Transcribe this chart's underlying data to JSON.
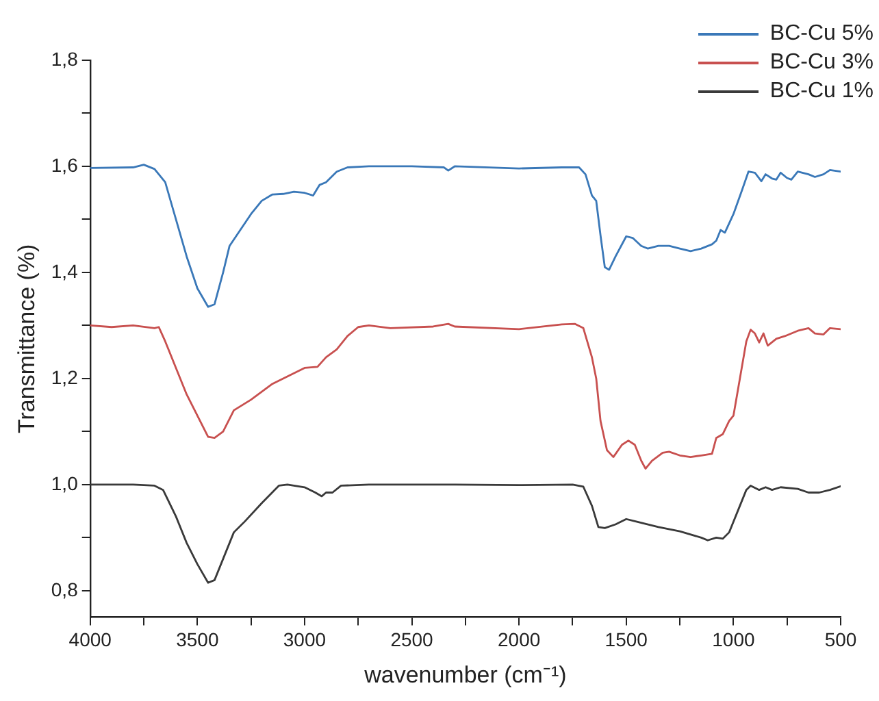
{
  "chart_data": {
    "type": "line",
    "xlabel": "wavenumber (cm⁻¹)",
    "ylabel": "Transmittance (%)",
    "xlim": [
      4000,
      500
    ],
    "ylim": [
      0.75,
      1.8
    ],
    "xticks": [
      4000,
      {
        "value": 3750,
        "label": null
      },
      3500,
      {
        "value": 3250,
        "label": null
      },
      3000,
      {
        "value": 2750,
        "label": null
      },
      2500,
      {
        "value": 2250,
        "label": null
      },
      2000,
      {
        "value": 1750,
        "label": null
      },
      1500,
      {
        "value": 1250,
        "label": null
      },
      1000,
      {
        "value": 750,
        "label": null
      },
      500
    ],
    "yticks": [
      {
        "value": 0.8,
        "label": "0,8"
      },
      {
        "value": 0.9,
        "label": null
      },
      {
        "value": 1.0,
        "label": "1,0"
      },
      {
        "value": 1.1,
        "label": null
      },
      {
        "value": 1.2,
        "label": "1,2"
      },
      {
        "value": 1.3,
        "label": null
      },
      {
        "value": 1.4,
        "label": "1,4"
      },
      {
        "value": 1.5,
        "label": null
      },
      {
        "value": 1.6,
        "label": "1,6"
      },
      {
        "value": 1.7,
        "label": null
      },
      {
        "value": 1.8,
        "label": "1,8"
      }
    ],
    "grid": false,
    "legend": "top right",
    "marker": "none",
    "line_style": "solid",
    "series": [
      {
        "name": "BC-Cu 5%",
        "color": "#3a78b8",
        "x": [
          4000,
          3800,
          3750,
          3700,
          3650,
          3600,
          3550,
          3500,
          3450,
          3420,
          3380,
          3350,
          3300,
          3250,
          3200,
          3150,
          3100,
          3050,
          3000,
          2960,
          2930,
          2900,
          2850,
          2800,
          2700,
          2500,
          2350,
          2330,
          2300,
          2000,
          1800,
          1720,
          1690,
          1660,
          1640,
          1620,
          1600,
          1580,
          1550,
          1500,
          1470,
          1430,
          1400,
          1350,
          1300,
          1250,
          1200,
          1150,
          1100,
          1080,
          1060,
          1040,
          1000,
          960,
          930,
          900,
          870,
          850,
          820,
          800,
          780,
          750,
          730,
          700,
          650,
          620,
          580,
          550,
          500
        ],
        "values": [
          1.597,
          1.598,
          1.603,
          1.595,
          1.57,
          1.5,
          1.43,
          1.37,
          1.335,
          1.34,
          1.4,
          1.45,
          1.48,
          1.51,
          1.535,
          1.547,
          1.548,
          1.552,
          1.55,
          1.545,
          1.565,
          1.57,
          1.59,
          1.598,
          1.6,
          1.6,
          1.598,
          1.592,
          1.6,
          1.596,
          1.598,
          1.598,
          1.585,
          1.545,
          1.535,
          1.47,
          1.41,
          1.405,
          1.43,
          1.468,
          1.465,
          1.45,
          1.445,
          1.45,
          1.45,
          1.445,
          1.44,
          1.445,
          1.453,
          1.46,
          1.48,
          1.475,
          1.51,
          1.555,
          1.59,
          1.588,
          1.572,
          1.585,
          1.577,
          1.575,
          1.588,
          1.578,
          1.575,
          1.59,
          1.585,
          1.58,
          1.585,
          1.593,
          1.59
        ]
      },
      {
        "name": "BC-Cu 3%",
        "color": "#c8504f",
        "x": [
          4000,
          3900,
          3800,
          3700,
          3680,
          3650,
          3600,
          3550,
          3500,
          3450,
          3420,
          3380,
          3330,
          3250,
          3150,
          3050,
          3000,
          2940,
          2900,
          2850,
          2800,
          2750,
          2700,
          2600,
          2400,
          2330,
          2300,
          2000,
          1800,
          1740,
          1700,
          1660,
          1640,
          1620,
          1590,
          1560,
          1520,
          1490,
          1460,
          1430,
          1410,
          1380,
          1330,
          1300,
          1250,
          1200,
          1150,
          1100,
          1080,
          1050,
          1020,
          1000,
          970,
          940,
          920,
          900,
          880,
          860,
          840,
          800,
          760,
          700,
          650,
          620,
          580,
          550,
          500
        ],
        "values": [
          1.3,
          1.297,
          1.3,
          1.295,
          1.297,
          1.27,
          1.22,
          1.17,
          1.13,
          1.09,
          1.088,
          1.1,
          1.14,
          1.16,
          1.19,
          1.21,
          1.22,
          1.222,
          1.24,
          1.255,
          1.28,
          1.297,
          1.3,
          1.295,
          1.298,
          1.303,
          1.298,
          1.293,
          1.302,
          1.303,
          1.295,
          1.24,
          1.2,
          1.12,
          1.065,
          1.052,
          1.075,
          1.083,
          1.075,
          1.045,
          1.03,
          1.045,
          1.06,
          1.062,
          1.055,
          1.052,
          1.055,
          1.058,
          1.088,
          1.095,
          1.12,
          1.13,
          1.2,
          1.27,
          1.292,
          1.285,
          1.268,
          1.285,
          1.262,
          1.275,
          1.28,
          1.29,
          1.295,
          1.285,
          1.283,
          1.295,
          1.293
        ]
      },
      {
        "name": "BC-Cu 1%",
        "color": "#3a3a3a",
        "x": [
          4000,
          3800,
          3700,
          3660,
          3600,
          3550,
          3500,
          3450,
          3420,
          3380,
          3330,
          3280,
          3200,
          3120,
          3080,
          3000,
          2950,
          2920,
          2900,
          2870,
          2830,
          2700,
          2300,
          2000,
          1750,
          1700,
          1660,
          1630,
          1600,
          1550,
          1500,
          1450,
          1350,
          1250,
          1150,
          1120,
          1080,
          1050,
          1020,
          980,
          940,
          920,
          880,
          850,
          820,
          780,
          700,
          650,
          600,
          550,
          500
        ],
        "values": [
          1.0,
          1.0,
          0.998,
          0.99,
          0.94,
          0.89,
          0.85,
          0.815,
          0.82,
          0.86,
          0.91,
          0.93,
          0.965,
          0.998,
          1.0,
          0.995,
          0.985,
          0.978,
          0.985,
          0.985,
          0.998,
          1.0,
          1.0,
          0.999,
          1.0,
          0.996,
          0.96,
          0.92,
          0.918,
          0.925,
          0.935,
          0.93,
          0.92,
          0.912,
          0.9,
          0.895,
          0.9,
          0.898,
          0.91,
          0.95,
          0.99,
          0.998,
          0.99,
          0.995,
          0.99,
          0.995,
          0.992,
          0.985,
          0.985,
          0.99,
          0.997
        ]
      }
    ]
  }
}
